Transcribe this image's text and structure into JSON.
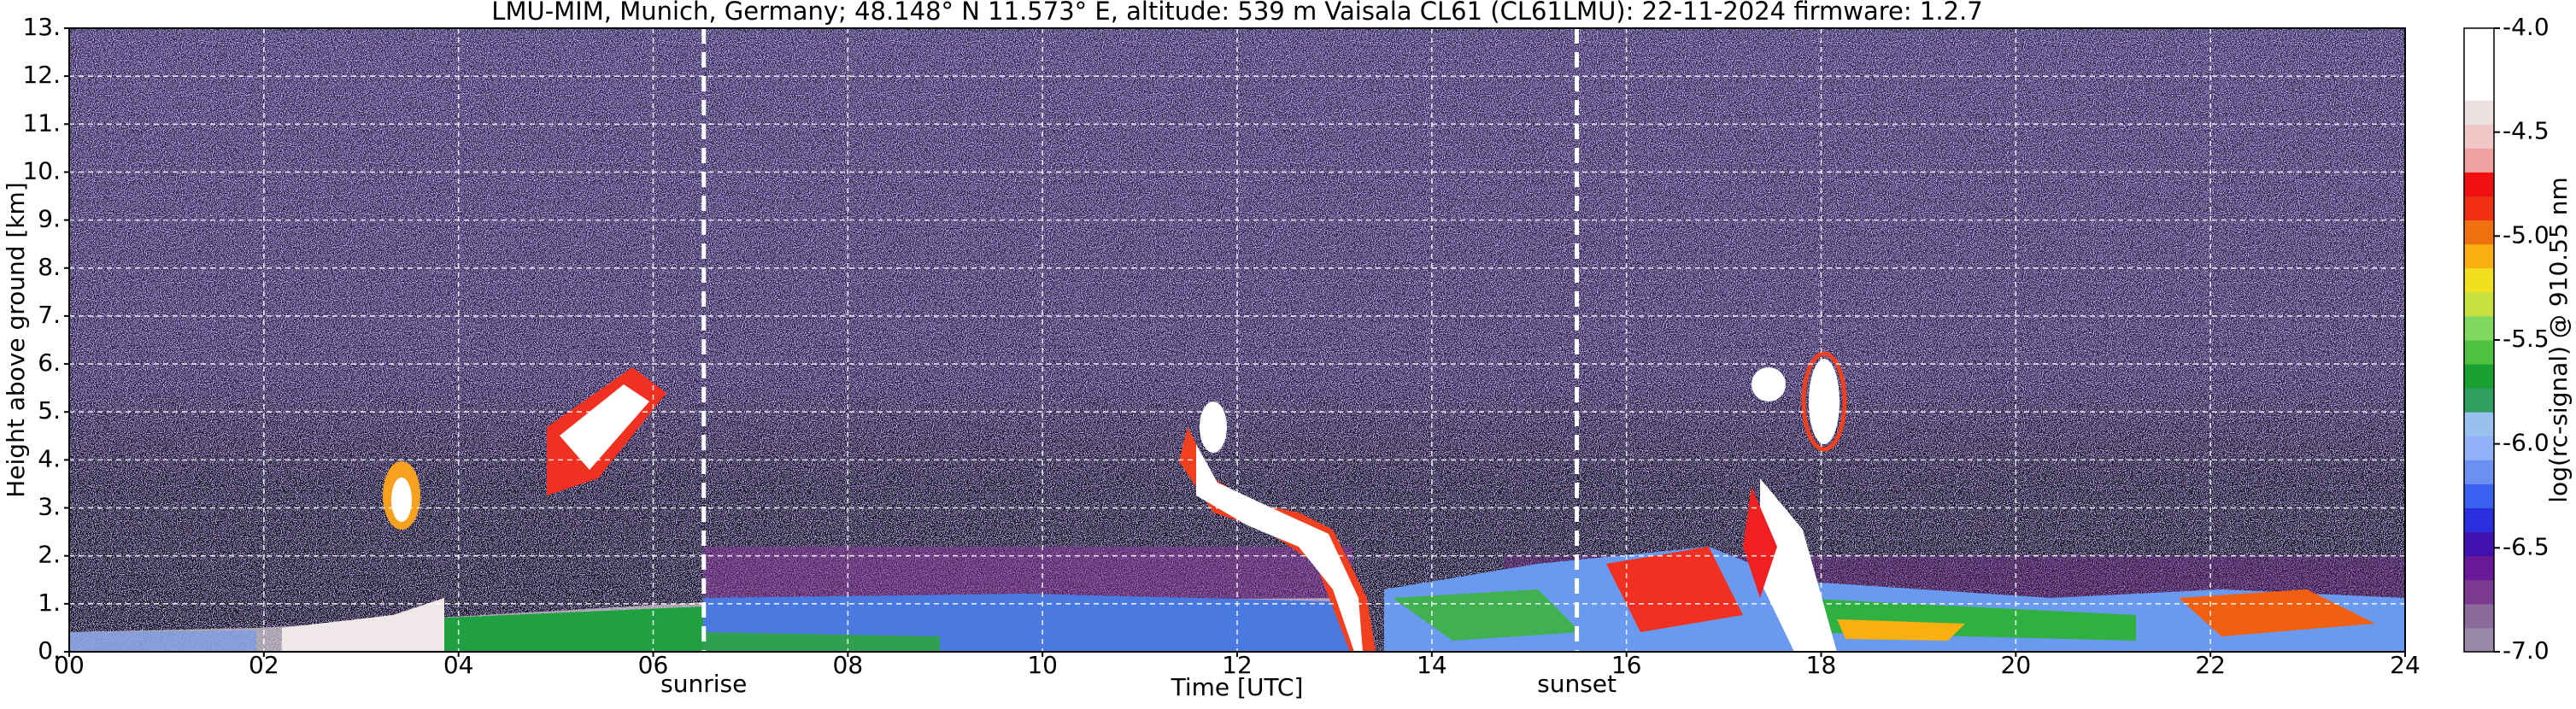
{
  "chart_data": {
    "type": "heatmap",
    "title": "LMU-MIM, Munich, Germany; 48.148° N 11.573° E, altitude: 539 m    Vaisala CL61 (CL61LMU): 22-11-2024    firmware: 1.2.7",
    "x_label": "Time [UTC]",
    "y_label": "Height above ground [km]",
    "xlim": [
      0,
      24
    ],
    "xticks": [
      {
        "value": 0,
        "label": "00"
      },
      {
        "value": 2,
        "label": "02"
      },
      {
        "value": 4,
        "label": "04"
      },
      {
        "value": 6,
        "label": "06"
      },
      {
        "value": 8,
        "label": "08"
      },
      10,
      12,
      14,
      16,
      18,
      20,
      22,
      24
    ],
    "ylim": [
      0,
      13
    ],
    "yticks": [
      {
        "value": 0,
        "label": "0."
      },
      {
        "value": 1,
        "label": "1."
      },
      {
        "value": 2,
        "label": "2."
      },
      {
        "value": 3,
        "label": "3."
      },
      {
        "value": 4,
        "label": "4."
      },
      {
        "value": 5,
        "label": "5."
      },
      {
        "value": 6,
        "label": "6."
      },
      {
        "value": 7,
        "label": "7."
      },
      {
        "value": 8,
        "label": "8."
      },
      {
        "value": 9,
        "label": "9."
      },
      {
        "value": 10,
        "label": "10."
      },
      {
        "value": 11,
        "label": "11."
      },
      {
        "value": 12,
        "label": "12."
      },
      {
        "value": 13,
        "label": "13."
      }
    ],
    "grid": true,
    "annotations": [
      {
        "text": "sunrise",
        "x": 6.52
      },
      {
        "text": "sunset",
        "x": 15.49
      }
    ],
    "colorbar": {
      "label": "log(rc-signal) @ 910.55 nm",
      "clim": [
        -7,
        -4
      ],
      "ticks": [
        {
          "value": -4,
          "label": "-4.0"
        },
        -4.5,
        {
          "value": -5,
          "label": "-5.0"
        },
        -5.5,
        {
          "value": -6,
          "label": "-6.0"
        },
        -6.5,
        {
          "value": -7,
          "label": "-7.0"
        }
      ],
      "colors": [
        "#9a88a8",
        "#8a6a9a",
        "#7a3a90",
        "#6a1a98",
        "#4010b0",
        "#2a30e0",
        "#3a60f0",
        "#6a90f0",
        "#90b0f8",
        "#9ac0f0",
        "#30a060",
        "#18a030",
        "#50c040",
        "#80d860",
        "#c8e040",
        "#f0e020",
        "#f8b010",
        "#f07010",
        "#f03010",
        "#f01010",
        "#f0a0a0",
        "#f0c8c8",
        "#ece0e0",
        "#ffffff",
        "#ffffff",
        "#ffffff"
      ]
    }
  }
}
